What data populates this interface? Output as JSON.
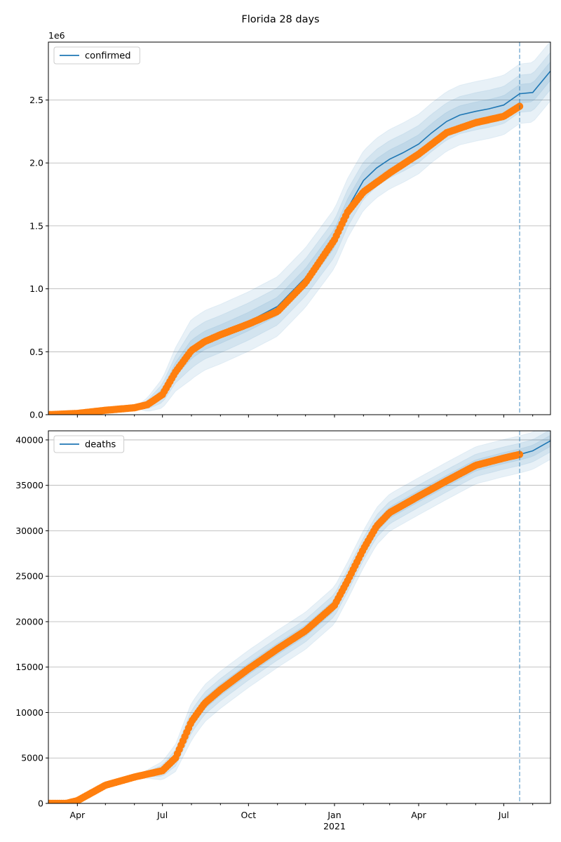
{
  "title": "Florida 28 days",
  "colors": {
    "model": "#1f77b4",
    "observed": "#ff7f0e",
    "band": "#1f77b4",
    "grid": "#b0b0b0",
    "forecast_line": "#1f77b4"
  },
  "x_axis": {
    "range": [
      "2020-03-01",
      "2021-08-20"
    ],
    "labeled_ticks": [
      {
        "date": "2020-04-01",
        "label": "Apr",
        "sublabel": ""
      },
      {
        "date": "2020-07-01",
        "label": "Jul",
        "sublabel": ""
      },
      {
        "date": "2020-10-01",
        "label": "Oct",
        "sublabel": ""
      },
      {
        "date": "2021-01-01",
        "label": "Jan",
        "sublabel": "2021"
      },
      {
        "date": "2021-04-01",
        "label": "Apr",
        "sublabel": ""
      },
      {
        "date": "2021-07-01",
        "label": "Jul",
        "sublabel": ""
      }
    ],
    "minor_ticks": [
      "2020-05-01",
      "2020-06-01",
      "2020-08-01",
      "2020-09-01",
      "2020-11-01",
      "2020-12-01",
      "2021-02-01",
      "2021-03-01",
      "2021-05-01",
      "2021-06-01",
      "2021-08-01"
    ],
    "forecast_start": "2021-07-18"
  },
  "chart_data": [
    {
      "type": "line",
      "ylim": [
        0,
        2960000
      ],
      "grid": "horizontal",
      "legend_placement": "upper-left",
      "offset_label": "1e6",
      "yticks": [
        {
          "value": 0,
          "label": "0.0"
        },
        {
          "value": 500000,
          "label": "0.5"
        },
        {
          "value": 1000000,
          "label": "1.0"
        },
        {
          "value": 1500000,
          "label": "1.5"
        },
        {
          "value": 2000000,
          "label": "2.0"
        },
        {
          "value": 2500000,
          "label": "2.5"
        }
      ],
      "series": [
        {
          "name": "confirmed",
          "role": "model",
          "x": [
            "2020-03-01",
            "2020-06-01",
            "2020-06-15",
            "2020-07-01",
            "2020-07-15",
            "2020-08-01",
            "2020-08-15",
            "2020-09-01",
            "2020-10-01",
            "2020-11-01",
            "2020-12-01",
            "2021-01-01",
            "2021-01-15",
            "2021-02-01",
            "2021-02-15",
            "2021-03-01",
            "2021-03-15",
            "2021-04-01",
            "2021-04-15",
            "2021-05-01",
            "2021-05-15",
            "2021-06-01",
            "2021-06-15",
            "2021-07-01",
            "2021-07-18",
            "2021-08-01",
            "2021-08-20"
          ],
          "y": [
            0,
            55000,
            80000,
            170000,
            360000,
            520000,
            590000,
            640000,
            740000,
            860000,
            1090000,
            1400000,
            1640000,
            1860000,
            1960000,
            2030000,
            2080000,
            2150000,
            2240000,
            2330000,
            2380000,
            2410000,
            2430000,
            2460000,
            2550000,
            2560000,
            2730000
          ]
        },
        {
          "name": "",
          "role": "observed",
          "x": [
            "2020-03-01",
            "2020-04-01",
            "2020-05-01",
            "2020-06-01",
            "2020-06-15",
            "2020-07-01",
            "2020-07-15",
            "2020-08-01",
            "2020-08-15",
            "2020-09-01",
            "2020-10-01",
            "2020-11-01",
            "2020-12-01",
            "2021-01-01",
            "2021-01-15",
            "2021-02-01",
            "2021-03-01",
            "2021-04-01",
            "2021-05-01",
            "2021-06-01",
            "2021-07-01",
            "2021-07-18"
          ],
          "y": [
            0,
            10000,
            35000,
            55000,
            80000,
            160000,
            340000,
            510000,
            580000,
            635000,
            720000,
            820000,
            1050000,
            1390000,
            1610000,
            1770000,
            1920000,
            2070000,
            2240000,
            2320000,
            2370000,
            2450000
          ]
        }
      ],
      "band_half_widths": [
        0.025,
        0.05,
        0.08
      ]
    },
    {
      "type": "line",
      "ylim": [
        0,
        41000
      ],
      "grid": "horizontal",
      "legend_placement": "upper-left",
      "offset_label": "",
      "yticks": [
        {
          "value": 0,
          "label": "0"
        },
        {
          "value": 5000,
          "label": "5000"
        },
        {
          "value": 10000,
          "label": "10000"
        },
        {
          "value": 15000,
          "label": "15000"
        },
        {
          "value": 20000,
          "label": "20000"
        },
        {
          "value": 25000,
          "label": "25000"
        },
        {
          "value": 30000,
          "label": "30000"
        },
        {
          "value": 35000,
          "label": "35000"
        },
        {
          "value": 40000,
          "label": "40000"
        }
      ],
      "series": [
        {
          "name": "deaths",
          "role": "model",
          "x": [
            "2020-03-01",
            "2020-03-20",
            "2020-04-01",
            "2020-05-01",
            "2020-06-01",
            "2020-07-01",
            "2020-07-15",
            "2020-08-01",
            "2020-08-15",
            "2020-09-01",
            "2020-10-01",
            "2020-11-01",
            "2020-12-01",
            "2021-01-01",
            "2021-01-15",
            "2021-02-01",
            "2021-02-15",
            "2021-03-01",
            "2021-04-01",
            "2021-05-01",
            "2021-06-01",
            "2021-07-01",
            "2021-07-18",
            "2021-08-01",
            "2021-08-20"
          ],
          "y": [
            0,
            0,
            300,
            2000,
            2900,
            3600,
            5000,
            9000,
            11000,
            12500,
            14800,
            17000,
            19000,
            21800,
            24500,
            28000,
            30500,
            32000,
            33800,
            35500,
            37200,
            38000,
            38400,
            38800,
            39900
          ]
        },
        {
          "name": "",
          "role": "observed",
          "x": [
            "2020-03-01",
            "2020-03-20",
            "2020-04-01",
            "2020-05-01",
            "2020-06-01",
            "2020-07-01",
            "2020-07-15",
            "2020-08-01",
            "2020-08-15",
            "2020-09-01",
            "2020-10-01",
            "2020-11-01",
            "2020-12-01",
            "2021-01-01",
            "2021-01-15",
            "2021-02-01",
            "2021-02-15",
            "2021-03-01",
            "2021-04-01",
            "2021-05-01",
            "2021-06-01",
            "2021-07-01",
            "2021-07-18"
          ],
          "y": [
            0,
            0,
            300,
            2000,
            2900,
            3600,
            5000,
            9000,
            11000,
            12500,
            14800,
            17000,
            19000,
            21800,
            24500,
            28000,
            30500,
            32000,
            33800,
            35500,
            37200,
            38000,
            38400
          ]
        }
      ],
      "band_half_widths": [
        0.015,
        0.03,
        0.05
      ]
    }
  ]
}
